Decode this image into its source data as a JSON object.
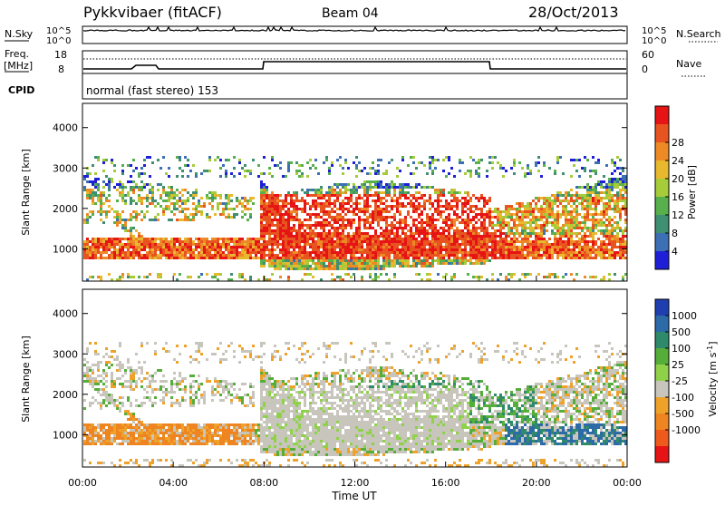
{
  "header": {
    "station": "Pykkvibaer (fitACF)",
    "beam": "Beam 04",
    "date": "28/Oct/2013"
  },
  "top_panels": {
    "nsky_label": "N.Sky",
    "nsky_ticks": [
      "10^5",
      "10^0"
    ],
    "nsearch_label": "N.Search",
    "nsearch_ticks": [
      "10^5",
      "10^0"
    ],
    "freq_label": "Freq.",
    "freq_unit": "[MHz]",
    "freq_ticks": [
      "18",
      "8"
    ],
    "nave_label": "Nave",
    "nave_ticks": [
      "60",
      "0"
    ],
    "cpid_label": "CPID",
    "cpid_text": "normal (fast stereo) 153"
  },
  "chart_data": [
    {
      "type": "heatmap",
      "name": "power",
      "xlabel": "",
      "ylabel": "Slant Range [km]",
      "yticks": [
        "1000",
        "2000",
        "3000",
        "4000"
      ],
      "ylim": [
        200,
        4600
      ],
      "xlim_hours": [
        0,
        24
      ],
      "colorbar": {
        "label": "Power [dB]",
        "ticks": [
          "4",
          "8",
          "12",
          "16",
          "20",
          "24",
          "28"
        ],
        "colors": [
          "#1f1fd8",
          "#3d6fb5",
          "#3f8f72",
          "#57b04c",
          "#a6cc3a",
          "#e8b92f",
          "#ee8a25",
          "#e85420",
          "#e61414"
        ]
      }
    },
    {
      "type": "heatmap",
      "name": "velocity",
      "xlabel": "Time UT",
      "ylabel": "Slant Range [km]",
      "yticks": [
        "1000",
        "2000",
        "3000",
        "4000"
      ],
      "ylim": [
        200,
        4600
      ],
      "xticks": [
        "00:00",
        "04:00",
        "08:00",
        "12:00",
        "16:00",
        "20:00",
        "00:00"
      ],
      "xlim_hours": [
        0,
        24
      ],
      "colorbar": {
        "label": "Velocity [m s^-1]",
        "ticks": [
          "1000",
          "500",
          "100",
          "25",
          "-25",
          "-100",
          "-500",
          "-1000"
        ],
        "colors": [
          "#1f3fb0",
          "#2c6aa8",
          "#2e8a6a",
          "#56ae3a",
          "#8fd24a",
          "#c8c5bd",
          "#eea22a",
          "#ee8520",
          "#ee5a1c",
          "#e61414"
        ]
      }
    }
  ]
}
